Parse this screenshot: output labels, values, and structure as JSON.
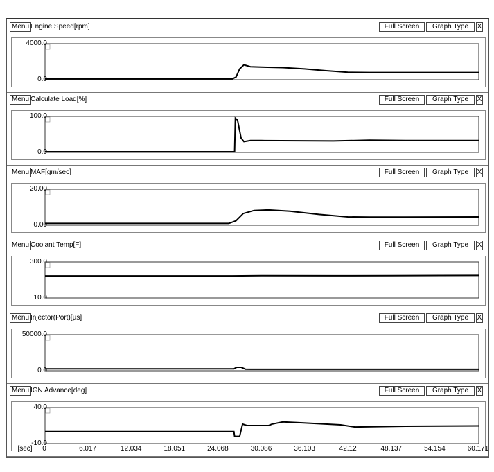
{
  "buttons": {
    "menu": "Menu",
    "full_screen": "Full Screen",
    "graph_type": "Graph Type",
    "close": "X"
  },
  "x_axis": {
    "unit": "[sec]",
    "ticks": [
      "0",
      "6.017",
      "12.034",
      "18.051",
      "24.068",
      "30.086",
      "36.103",
      "42.12",
      "48.137",
      "54.154",
      "60.171"
    ]
  },
  "chart_data": [
    {
      "type": "line",
      "title": "Engine Speed[rpm]",
      "ymax_label": "4000.0",
      "ymin_label": "0.0",
      "ylim": [
        0,
        4000
      ],
      "xlim": [
        0,
        60.171
      ],
      "x": [
        0,
        26.0,
        26.5,
        27.0,
        27.6,
        28.5,
        30,
        33,
        36,
        39,
        42,
        45,
        50,
        60.171
      ],
      "y": [
        100,
        100,
        300,
        1200,
        1650,
        1450,
        1400,
        1350,
        1200,
        1000,
        820,
        800,
        800,
        800
      ]
    },
    {
      "type": "line",
      "title": "Calculate Load[%]",
      "ymax_label": "100.0",
      "ymin_label": "0.0",
      "ylim": [
        0,
        100
      ],
      "xlim": [
        0,
        60.171
      ],
      "x": [
        0,
        26.3,
        26.4,
        26.7,
        27.2,
        27.6,
        28.5,
        30,
        40,
        45,
        50,
        60.171
      ],
      "y": [
        2,
        2,
        95,
        90,
        40,
        30,
        33,
        33,
        32,
        34,
        33,
        33
      ]
    },
    {
      "type": "line",
      "title": "MAF[gm/sec]",
      "ymax_label": "20.00",
      "ymin_label": "0.00",
      "ylim": [
        0,
        20
      ],
      "xlim": [
        0,
        60.171
      ],
      "x": [
        0,
        25.5,
        26.5,
        27.5,
        29,
        31,
        34,
        38,
        42,
        45,
        50,
        60.171
      ],
      "y": [
        1.0,
        1.0,
        2.5,
        6.5,
        8.2,
        8.5,
        7.8,
        6.0,
        4.6,
        4.5,
        4.5,
        4.6
      ]
    },
    {
      "type": "line",
      "title": "Coolant Temp[F]",
      "ymax_label": "300.0",
      "ymin_label": "10.0",
      "ylim": [
        10,
        300
      ],
      "xlim": [
        0,
        60.171
      ],
      "x": [
        0,
        26,
        30,
        40,
        48,
        60.171
      ],
      "y": [
        188,
        188,
        190,
        189,
        190,
        192
      ]
    },
    {
      "type": "line",
      "title": "Injector(Port)[µs]",
      "ymax_label": "50000.0",
      "ymin_label": "0.0",
      "ylim": [
        0,
        50000
      ],
      "xlim": [
        0,
        60.171
      ],
      "x": [
        0,
        26.2,
        26.6,
        27.2,
        27.8,
        28.5,
        60.171
      ],
      "y": [
        2600,
        2600,
        4800,
        4800,
        2200,
        2000,
        2000
      ]
    },
    {
      "type": "line",
      "title": "IGN Advance[deg]",
      "ymax_label": "40.0",
      "ymin_label": "-10.0",
      "ylim": [
        -10,
        40
      ],
      "xlim": [
        0,
        60.171
      ],
      "x": [
        0,
        26.2,
        26.3,
        27.0,
        27.4,
        28,
        31,
        31.5,
        33,
        35,
        38,
        41,
        43,
        46,
        50,
        60.171
      ],
      "y": [
        6.5,
        6.5,
        0,
        0,
        17,
        15,
        15,
        17,
        20,
        19,
        17.5,
        16,
        13,
        13.5,
        14,
        14.5
      ]
    }
  ]
}
